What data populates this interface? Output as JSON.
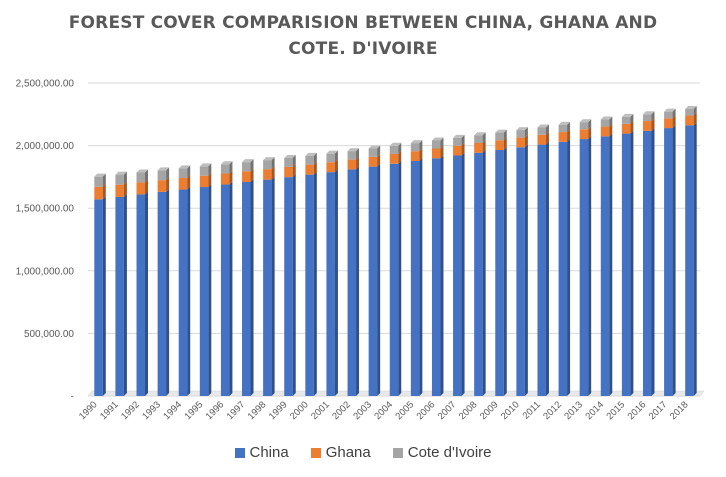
{
  "chart_data": {
    "type": "bar",
    "stacked": true,
    "title_lines": [
      "FOREST COVER COMPARISION BETWEEN CHINA, GHANA AND",
      "COTE. D'IVOIRE"
    ],
    "categories": [
      "1990",
      "1991",
      "1992",
      "1993",
      "1994",
      "1995",
      "1996",
      "1997",
      "1998",
      "1999",
      "2000",
      "2001",
      "2002",
      "2003",
      "2004",
      "2005",
      "2006",
      "2007",
      "2008",
      "2009",
      "2010",
      "2011",
      "2012",
      "2013",
      "2014",
      "2015",
      "2016",
      "2017",
      "2018"
    ],
    "series": [
      {
        "name": "China",
        "color": "#4472c4",
        "values": [
          1571000,
          1590000,
          1610000,
          1630000,
          1649000,
          1669000,
          1689000,
          1709000,
          1728000,
          1748000,
          1768000,
          1788000,
          1810000,
          1832000,
          1855000,
          1877000,
          1899000,
          1921000,
          1943000,
          1965000,
          1986000,
          2008000,
          2030000,
          2052000,
          2074000,
          2096000,
          2118000,
          2140000,
          2162000
        ]
      },
      {
        "name": "Ghana",
        "color": "#ed7d31",
        "values": [
          100000,
          98000,
          96000,
          94000,
          92000,
          90000,
          88000,
          86000,
          84000,
          82000,
          80000,
          79000,
          78000,
          78000,
          78000,
          78000,
          78000,
          78000,
          78000,
          78000,
          78000,
          78000,
          78000,
          78000,
          78000,
          78000,
          78000,
          78000,
          78000
        ]
      },
      {
        "name": "Cote d'Ivoire",
        "color": "#a5a5a5",
        "values": [
          81000,
          80000,
          79000,
          78000,
          77000,
          75000,
          74000,
          73000,
          72000,
          71000,
          70000,
          69000,
          68000,
          67000,
          66000,
          65000,
          64000,
          63000,
          62000,
          61000,
          60000,
          59000,
          58000,
          57000,
          56000,
          55000,
          54000,
          53000,
          52000
        ]
      }
    ],
    "y_tick_labels": [
      "-",
      "500,000.00",
      "1,000,000.00",
      "1,500,000.00",
      "2,000,000.00",
      "2,500,000.00"
    ],
    "y_tick_values": [
      0,
      500000,
      1000000,
      1500000,
      2000000,
      2500000
    ],
    "ylim": [
      0,
      2500000
    ],
    "grid": true,
    "legend_position": "bottom"
  }
}
